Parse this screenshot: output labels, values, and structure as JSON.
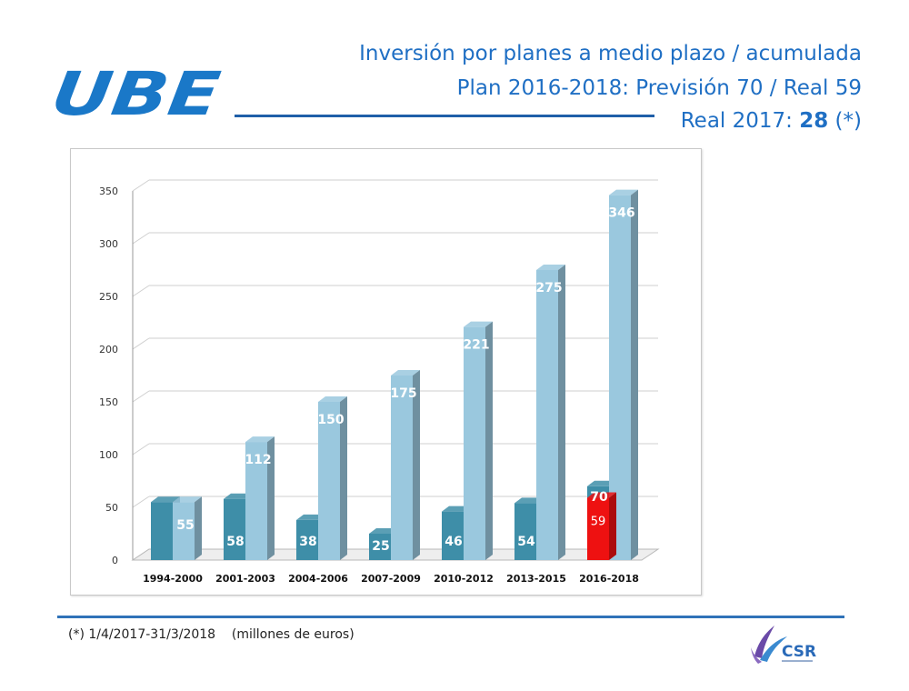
{
  "header": {
    "logo_text": "UBE",
    "title_line1": "Inversión por planes a medio plazo / acumulada",
    "title_line2": "Plan 2016-2018: Previsión 70 / Real 59",
    "title_line3_prefix": "Real 2017: ",
    "title_line3_value": "28",
    "title_line3_suffix": "  (*)"
  },
  "footer": {
    "footnote": "(*) 1/4/2017-31/3/2018    (millones de euros)",
    "csr_logo_text": "CSR"
  },
  "colors": {
    "title": "#1f6fc4",
    "bar_plan": "#3e8ea8",
    "bar_cumulative": "#9ac8de",
    "bar_real": "#ee1111",
    "logo": "#1a78c8"
  },
  "chart_data": {
    "type": "bar",
    "title": "",
    "xlabel": "",
    "ylabel": "",
    "categories": [
      "1994-2000",
      "2001-2003",
      "2004-2006",
      "2007-2009",
      "2010-2012",
      "2013-2015",
      "2016-2018"
    ],
    "series": [
      {
        "values": [
          55,
          58,
          38,
          25,
          46,
          54,
          70
        ]
      },
      {
        "values": [
          55,
          112,
          150,
          175,
          221,
          275,
          346
        ]
      },
      {
        "values": [
          null,
          null,
          null,
          null,
          null,
          null,
          59
        ]
      }
    ],
    "data_labels": [
      [
        "",
        "58",
        "38",
        "25",
        "46",
        "54",
        "70"
      ],
      [
        "55",
        "112",
        "150",
        "175",
        "221",
        "275",
        "346"
      ],
      [
        "",
        "",
        "",
        "",
        "",
        "",
        "59"
      ]
    ],
    "yticks": [
      0,
      50,
      100,
      150,
      200,
      250,
      300,
      350
    ],
    "ylim": [
      0,
      350
    ],
    "grid": true,
    "legend": "none",
    "style": "3d-clustered-bar"
  }
}
